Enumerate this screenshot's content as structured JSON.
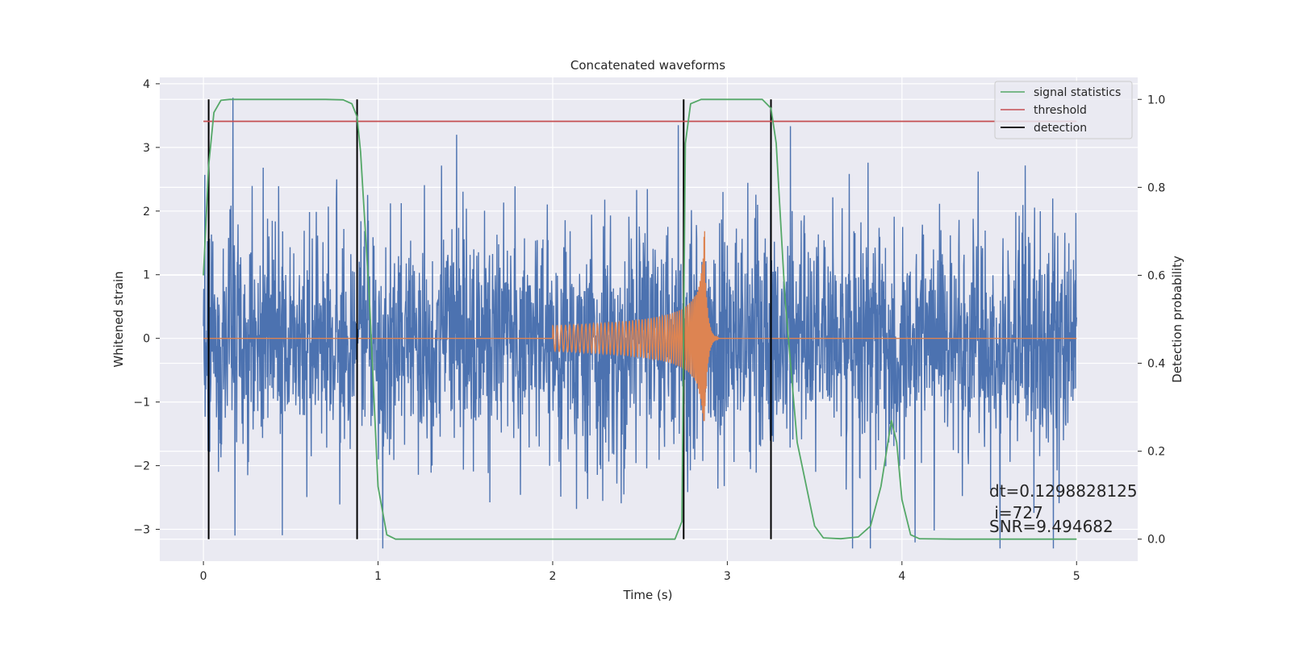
{
  "chart_data": {
    "type": "line",
    "title": "Concatenated waveforms",
    "xlabel": "Time (s)",
    "ylabel": "Whitened strain",
    "ylabel_right": "Detection probability",
    "xlim": [
      -0.25,
      5.35
    ],
    "ylim": [
      -3.5,
      4.1
    ],
    "ylim_right": [
      -0.05,
      1.05
    ],
    "grid": true,
    "legend_position": "top-right",
    "xticks": [
      0,
      1,
      2,
      3,
      4,
      5
    ],
    "xtick_labels": [
      "0",
      "1",
      "2",
      "3",
      "4",
      "5"
    ],
    "yticks": [
      -3,
      -2,
      -1,
      0,
      1,
      2,
      3,
      4
    ],
    "ytick_labels": [
      "−3",
      "−2",
      "−1",
      "0",
      "1",
      "2",
      "3",
      "4"
    ],
    "yticks_right": [
      0.0,
      0.2,
      0.4,
      0.6,
      0.8,
      1.0
    ],
    "ytick_right_labels": [
      "0.0",
      "0.2",
      "0.4",
      "0.6",
      "0.8",
      "1.0"
    ],
    "series": [
      {
        "name": "",
        "axis": "left",
        "color": "#4c72b0",
        "kind": "noise",
        "x_range": [
          0,
          5
        ],
        "typical_amplitude": 1.3,
        "max_value": 3.78,
        "min_value": -3.3
      },
      {
        "name": "",
        "axis": "left",
        "color": "#dd8452",
        "kind": "chirp",
        "x_range": [
          0,
          5
        ],
        "start": 2.0,
        "merger": 2.87,
        "peak_value": 1.7,
        "min_value": -1.3
      },
      {
        "name": "signal statistics",
        "axis": "right",
        "color": "#55a868",
        "x": [
          0.0,
          0.03,
          0.06,
          0.1,
          0.15,
          0.3,
          0.5,
          0.7,
          0.8,
          0.85,
          0.88,
          0.9,
          0.95,
          1.0,
          1.05,
          1.1,
          1.3,
          2.0,
          2.5,
          2.7,
          2.74,
          2.76,
          2.79,
          2.85,
          3.0,
          3.2,
          3.25,
          3.28,
          3.33,
          3.4,
          3.5,
          3.55,
          3.65,
          3.75,
          3.82,
          3.88,
          3.94,
          3.97,
          4.0,
          4.05,
          4.1,
          4.3,
          5.0
        ],
        "y": [
          0.6,
          0.85,
          0.97,
          0.998,
          1.0,
          1.0,
          1.0,
          1.0,
          0.999,
          0.99,
          0.96,
          0.88,
          0.55,
          0.12,
          0.01,
          0.0,
          0.0,
          0.0,
          0.0,
          0.0,
          0.04,
          0.9,
          0.99,
          1.0,
          1.0,
          1.0,
          0.98,
          0.9,
          0.55,
          0.22,
          0.03,
          0.003,
          0.001,
          0.005,
          0.03,
          0.12,
          0.27,
          0.22,
          0.09,
          0.01,
          0.001,
          0.0,
          0.0
        ]
      },
      {
        "name": "threshold",
        "axis": "right",
        "color": "#c44e52",
        "x": [
          0,
          5
        ],
        "y": [
          0.95,
          0.95
        ]
      }
    ],
    "detections": {
      "name": "detection",
      "color": "#000000",
      "x": [
        0.03,
        0.88,
        2.75,
        3.25
      ]
    },
    "annotations": [
      "dt=0.1298828125",
      " i=727",
      "SNR=9.494682"
    ]
  }
}
